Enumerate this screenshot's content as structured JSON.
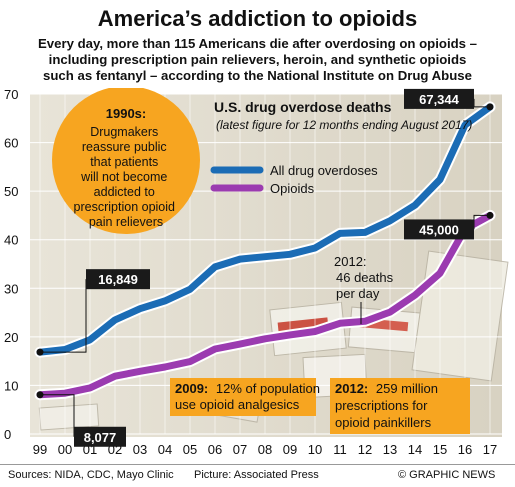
{
  "header": {
    "title": "America’s addiction to opioids",
    "subtitle_lines": [
      "Every day, more than 115 Americans die after overdosing on opioids –",
      "including prescription pain relievers, heroin, and synthetic opioids",
      "such as fentanyl – according to the National Institute on Drug Abuse"
    ]
  },
  "chart_data": {
    "type": "line",
    "title": "U.S. drug overdose deaths",
    "subtitle": "(latest figure for 12 months ending August 2017)",
    "x": [
      "99",
      "00",
      "01",
      "02",
      "03",
      "04",
      "05",
      "06",
      "07",
      "08",
      "09",
      "10",
      "11",
      "12",
      "13",
      "14",
      "15",
      "16",
      "17"
    ],
    "ylim": [
      0,
      70
    ],
    "yticks": [
      0,
      10,
      20,
      30,
      40,
      50,
      60,
      70
    ],
    "grid": true,
    "legend_position": "top-center",
    "series": [
      {
        "name": "All drug overdoses",
        "color": "#1b6cb5",
        "values": [
          16.849,
          17.4,
          19.4,
          23.5,
          25.8,
          27.4,
          29.8,
          34.4,
          36.0,
          36.5,
          37.0,
          38.3,
          41.3,
          41.5,
          43.9,
          47.1,
          52.4,
          63.6,
          67.344
        ]
      },
      {
        "name": "Opioids",
        "color": "#9b3bb0",
        "values": [
          8.077,
          8.4,
          9.5,
          11.9,
          12.9,
          13.8,
          14.9,
          17.5,
          18.5,
          19.6,
          20.4,
          21.1,
          22.8,
          23.2,
          25.1,
          28.6,
          33.1,
          42.2,
          45.0
        ]
      }
    ],
    "point_labels": [
      {
        "text": "67,344",
        "series": 0,
        "index": 18
      },
      {
        "text": "16,849",
        "series": 0,
        "index": 0
      },
      {
        "text": "8,077",
        "series": 1,
        "index": 0
      },
      {
        "text": "45,000",
        "series": 1,
        "index": 18
      }
    ],
    "annotations": {
      "a1990s_head": "1990s:",
      "a1990s_lines": [
        "Drugmakers",
        "reassure public",
        "that patients",
        "will not become",
        "addicted to",
        "prescription opioid",
        "pain relievers"
      ],
      "a2012_lines": [
        "2012:",
        "46 deaths",
        "per day"
      ],
      "a2009_head": "2009:",
      "a2009_line1": "12% of population",
      "a2009_line2": "use opioid analgesics",
      "b2012_head": "2012:",
      "b2012_line1": "259 million",
      "b2012_line2": "prescriptions for",
      "b2012_line3": "opioid painkillers"
    },
    "colors": {
      "orange": "#f7a520",
      "black": "#1a1a1a"
    }
  },
  "footer": {
    "sources": "Sources: NIDA, CDC, Mayo Clinic",
    "picture": "Picture: Associated Press",
    "credit": "© GRAPHIC NEWS"
  }
}
